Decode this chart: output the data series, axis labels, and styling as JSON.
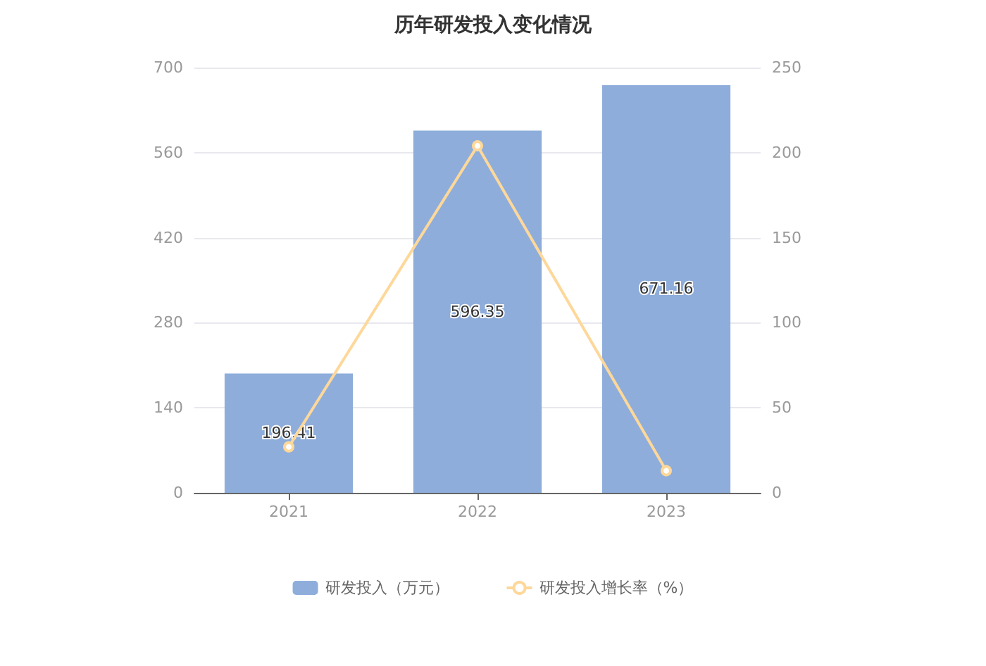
{
  "chart_data": {
    "type": "bar",
    "title": "历年研发投入变化情况",
    "categories": [
      "2021",
      "2022",
      "2023"
    ],
    "series": [
      {
        "name": "研发投入（万元）",
        "color": "#8eaddb",
        "values": [
          196.41,
          596.35,
          671.16
        ],
        "data_labels": true
      },
      {
        "name": "研发投入增长率（%）",
        "type": "line",
        "axis": "y2",
        "color": "#fdd89a",
        "values": [
          27,
          204,
          13
        ],
        "marker": "circle"
      }
    ],
    "ylim": [
      0,
      700
    ],
    "yticks": [
      0,
      140,
      280,
      420,
      560,
      700
    ],
    "y2lim": [
      0,
      250
    ],
    "y2ticks": [
      0,
      50,
      100,
      150,
      200,
      250
    ],
    "grid": "y",
    "legend": "bottom"
  }
}
